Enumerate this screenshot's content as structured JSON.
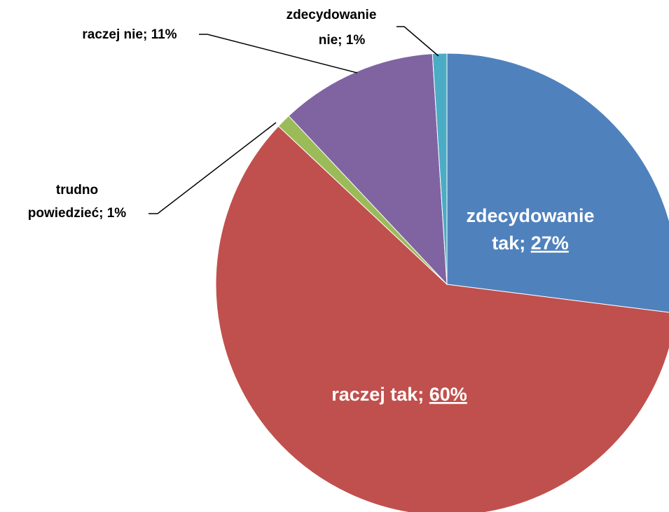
{
  "chart_data": {
    "type": "pie",
    "slices": [
      {
        "label": "zdecydowanie tak",
        "value": 27,
        "value_text": "27%",
        "color": "#4F81BD"
      },
      {
        "label": "raczej tak",
        "value": 60,
        "value_text": "60%",
        "color": "#C0504D"
      },
      {
        "label": "trudno powiedzieć",
        "value": 1,
        "value_text": "1%",
        "color": "#9BBB59"
      },
      {
        "label": "raczej nie",
        "value": 11,
        "value_text": "11%",
        "color": "#8064A2"
      },
      {
        "label": "zdecydowanie nie",
        "value": 1,
        "value_text": "1%",
        "color": "#4BACC6"
      }
    ],
    "start_angle": "12 o'clock",
    "direction": "clockwise",
    "legend": "none"
  },
  "labels": {
    "zt_line1": "zdecydowanie",
    "zt_line2": "tak; ",
    "zt_value": "27%",
    "rt_name": "raczej tak; ",
    "rt_value": "60%",
    "tp_line1": "trudno",
    "tp_line2": "powiedzieć; 1%",
    "rn": "raczej nie; 11%",
    "zn_line1": "zdecydowanie",
    "zn_line2": "nie; 1%"
  }
}
